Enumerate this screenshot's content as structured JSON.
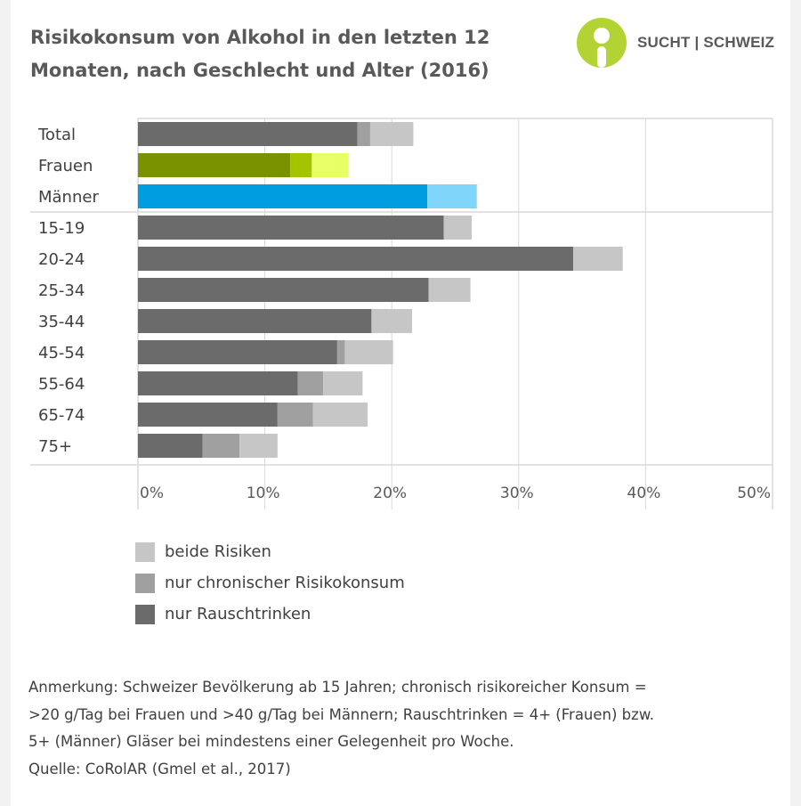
{
  "header": {
    "title_line1": "Risikokonsum von Alkohol in den letzten 12",
    "title_line2": "Monaten, nach Geschlecht und Alter (2016)"
  },
  "logo": {
    "text": "SUCHT | SCHWEIZ",
    "color": "#b3d334",
    "icon": "person-circle-icon"
  },
  "chart_data": {
    "type": "bar",
    "orientation": "horizontal",
    "stacked": true,
    "categories": [
      "Total",
      "Frauen",
      "Männer",
      "15-19",
      "20-24",
      "25-34",
      "35-44",
      "45-54",
      "55-64",
      "65-74",
      "75+"
    ],
    "series": [
      {
        "name": "nur Rauschtrinken",
        "values": [
          17.3,
          12.0,
          22.8,
          24.1,
          34.3,
          22.9,
          18.4,
          15.7,
          12.6,
          11.0,
          5.1
        ]
      },
      {
        "name": "nur chronischer Risikokonsum",
        "values": [
          1.0,
          1.7,
          0.0,
          0.0,
          0.0,
          0.0,
          0.0,
          0.6,
          2.0,
          2.8,
          2.9
        ]
      },
      {
        "name": "beide Risiken",
        "values": [
          3.4,
          2.9,
          3.9,
          2.2,
          3.9,
          3.3,
          3.2,
          3.8,
          3.1,
          4.3,
          3.0
        ]
      }
    ],
    "series_colors": [
      "#6b6b6b",
      "#a0a0a0",
      "#c6c6c6"
    ],
    "highlight_colors": {
      "Frauen": [
        "#7a9200",
        "#a4c400",
        "#e8ff66"
      ],
      "Männer": [
        "#009ee0",
        "#009ee0",
        "#7fd6fa"
      ]
    },
    "x_ticks": [
      "0%",
      "10%",
      "20%",
      "30%",
      "40%",
      "50%"
    ],
    "xlim": [
      0,
      50
    ],
    "grid": true,
    "legend_position": "bottom-left",
    "legend": [
      "beide Risiken",
      "nur chronischer Risikokonsum",
      "nur Rauschtrinken"
    ]
  },
  "legend_colors": [
    "#c6c6c6",
    "#a0a0a0",
    "#6b6b6b"
  ],
  "notes": {
    "line1": "Anmerkung: Schweizer Bevölkerung ab 15 Jahren; chronisch risikoreicher Konsum =",
    "line2": ">20 g/Tag bei Frauen und  >40 g/Tag bei Männern; Rauschtrinken = 4+ (Frauen) bzw.",
    "line3": "5+ (Männer) Gläser bei mindestens einer Gelegenheit pro Woche.",
    "line4": "Quelle: CoRolAR (Gmel et al., 2017)"
  }
}
